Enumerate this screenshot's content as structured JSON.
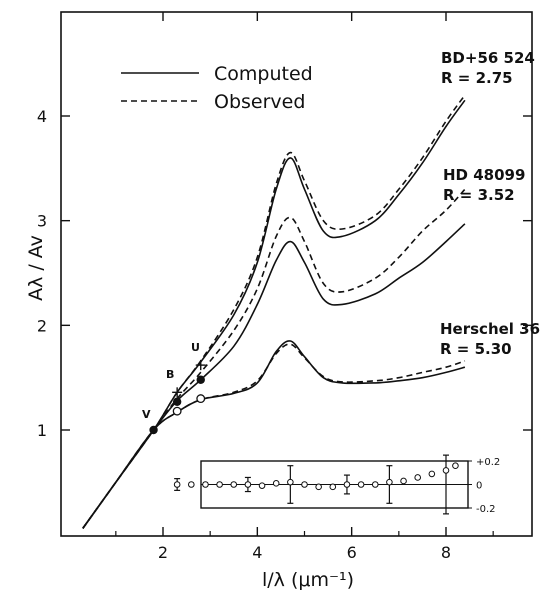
{
  "chart_data": {
    "type": "line",
    "xlabel": "l/λ (μm⁻¹)",
    "ylabel": "Aλ / Av",
    "xlim": [
      0,
      10
    ],
    "ylim": [
      0,
      5
    ],
    "x_ticks": [
      "2",
      "4",
      "6",
      "8"
    ],
    "y_ticks": [
      "1",
      "2",
      "3",
      "4"
    ],
    "legend": {
      "position": "top-left",
      "entries": [
        {
          "label": "Computed",
          "style": "solid"
        },
        {
          "label": "Observed",
          "style": "dashed"
        }
      ]
    },
    "annotations": [
      {
        "name": "BD+56 524",
        "r_label": "R = 2.75"
      },
      {
        "name": "HD 48099",
        "r_label": "R = 3.52"
      },
      {
        "name": "Herschel 36",
        "r_label": "R = 5.30"
      }
    ],
    "band_letters": [
      "V",
      "B",
      "U"
    ],
    "series": [
      {
        "name": "BD+56 524",
        "style": "solid",
        "x": [
          0.3,
          1.0,
          1.8,
          2.3,
          2.8,
          3.5,
          4.0,
          4.4,
          4.7,
          5.0,
          5.4,
          5.8,
          6.5,
          7.0,
          7.5,
          8.0,
          8.4
        ],
        "y": [
          0.06,
          0.5,
          1.0,
          1.36,
          1.65,
          2.1,
          2.6,
          3.3,
          3.6,
          3.3,
          2.9,
          2.85,
          3.0,
          3.25,
          3.55,
          3.9,
          4.15
        ]
      },
      {
        "name": "BD+56 524",
        "style": "dashed",
        "x": [
          0.3,
          1.0,
          1.8,
          2.3,
          2.8,
          3.5,
          4.0,
          4.4,
          4.7,
          5.0,
          5.4,
          5.8,
          6.5,
          7.0,
          7.5,
          8.0,
          8.4
        ],
        "y": [
          0.06,
          0.5,
          1.0,
          1.36,
          1.66,
          2.15,
          2.65,
          3.35,
          3.65,
          3.38,
          3.0,
          2.92,
          3.05,
          3.3,
          3.6,
          3.95,
          4.2
        ]
      },
      {
        "name": "HD 48099",
        "style": "solid",
        "x": [
          0.3,
          1.0,
          1.8,
          2.3,
          2.8,
          3.5,
          4.0,
          4.4,
          4.7,
          5.0,
          5.4,
          5.8,
          6.5,
          7.0,
          7.5,
          8.0,
          8.4
        ],
        "y": [
          0.06,
          0.5,
          1.0,
          1.28,
          1.48,
          1.8,
          2.2,
          2.62,
          2.8,
          2.6,
          2.25,
          2.2,
          2.3,
          2.45,
          2.6,
          2.8,
          2.97
        ]
      },
      {
        "name": "HD 48099",
        "style": "dashed",
        "x": [
          0.3,
          1.0,
          1.8,
          2.3,
          2.8,
          3.5,
          4.0,
          4.4,
          4.7,
          5.0,
          5.4,
          5.8,
          6.5,
          7.0,
          7.5,
          8.0,
          8.4
        ],
        "y": [
          0.06,
          0.5,
          1.0,
          1.3,
          1.55,
          1.95,
          2.35,
          2.85,
          3.03,
          2.8,
          2.4,
          2.32,
          2.45,
          2.65,
          2.9,
          3.1,
          3.3
        ]
      },
      {
        "name": "Herschel 36",
        "style": "solid",
        "x": [
          0.3,
          1.0,
          1.8,
          2.3,
          2.8,
          3.5,
          4.0,
          4.4,
          4.7,
          5.0,
          5.4,
          5.8,
          6.5,
          7.0,
          7.5,
          8.0,
          8.4
        ],
        "y": [
          0.06,
          0.5,
          1.0,
          1.17,
          1.29,
          1.35,
          1.45,
          1.75,
          1.85,
          1.7,
          1.5,
          1.45,
          1.45,
          1.47,
          1.5,
          1.55,
          1.6
        ]
      },
      {
        "name": "Herschel 36",
        "style": "dashed",
        "x": [
          0.3,
          1.0,
          1.8,
          2.3,
          2.8,
          3.5,
          4.0,
          4.4,
          4.7,
          5.0,
          5.4,
          5.8,
          6.5,
          7.0,
          7.5,
          8.0,
          8.4
        ],
        "y": [
          0.06,
          0.5,
          1.0,
          1.17,
          1.29,
          1.36,
          1.47,
          1.73,
          1.82,
          1.69,
          1.51,
          1.46,
          1.47,
          1.5,
          1.55,
          1.6,
          1.66
        ]
      }
    ],
    "photometry_points": [
      {
        "band": "V",
        "x": 1.8,
        "y": 1.0,
        "fill": "black"
      },
      {
        "band": "B",
        "x": 2.3,
        "y": 1.27,
        "fill": "black"
      },
      {
        "band": "B",
        "x": 2.3,
        "y": 1.18,
        "fill": "open"
      },
      {
        "band": "B",
        "x": 2.3,
        "y": 1.36,
        "fill": "cross"
      },
      {
        "band": "U",
        "x": 2.8,
        "y": 1.48,
        "fill": "black"
      },
      {
        "band": "U",
        "x": 2.8,
        "y": 1.3,
        "fill": "open"
      },
      {
        "band": "U",
        "x": 2.8,
        "y": 1.62,
        "fill": "cross"
      }
    ],
    "inset": {
      "ylim": [
        -0.2,
        0.2
      ],
      "y_ticks": [
        "+0.2",
        "0",
        "-0.2"
      ],
      "x": [
        2.3,
        2.6,
        2.9,
        3.2,
        3.5,
        3.8,
        4.1,
        4.4,
        4.7,
        5.0,
        5.3,
        5.6,
        5.9,
        6.2,
        6.5,
        6.8,
        7.1,
        7.4,
        7.7,
        8.0,
        8.2
      ],
      "y": [
        0.0,
        0.0,
        0.0,
        0.0,
        0.0,
        0.0,
        -0.01,
        0.01,
        0.02,
        0.0,
        -0.02,
        -0.02,
        0.0,
        0.0,
        0.0,
        0.02,
        0.03,
        0.06,
        0.09,
        0.12,
        0.16
      ],
      "error_bars": [
        {
          "x": 2.3,
          "err": 0.05
        },
        {
          "x": 3.8,
          "err": 0.06
        },
        {
          "x": 4.7,
          "err": 0.16
        },
        {
          "x": 5.9,
          "err": 0.08
        },
        {
          "x": 6.8,
          "err": 0.16
        },
        {
          "x": 8.0,
          "err": 0.25
        }
      ]
    }
  }
}
